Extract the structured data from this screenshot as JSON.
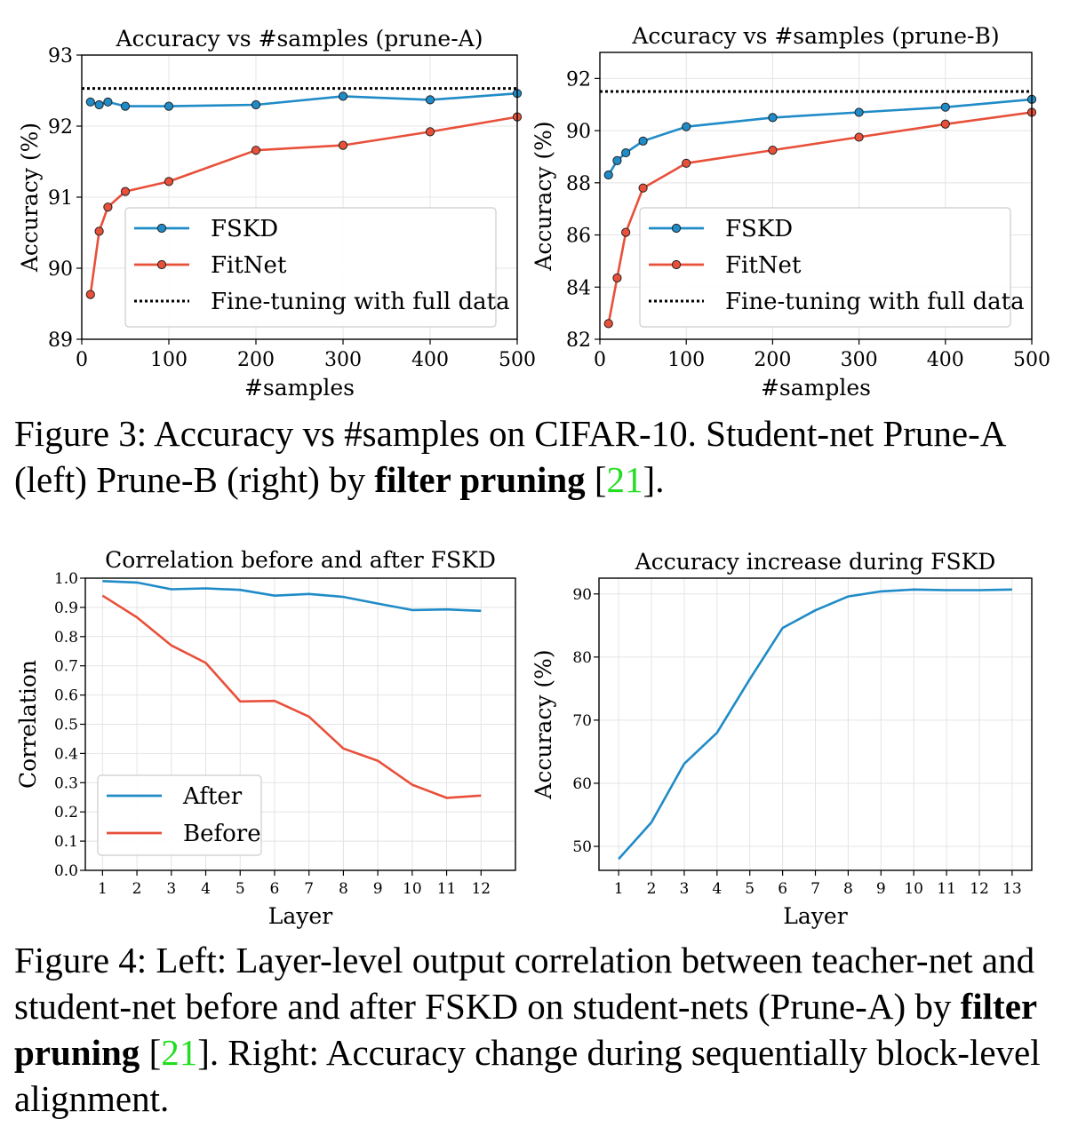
{
  "chart_data": [
    {
      "type": "line",
      "title": "Accuracy vs #samples (prune-A)",
      "xlabel": "#samples",
      "ylabel": "Accuracy (%)",
      "xlim": [
        0,
        500
      ],
      "ylim": [
        89,
        93
      ],
      "xticks": [
        "0",
        "100",
        "200",
        "300",
        "400",
        "500"
      ],
      "yticks": [
        "89",
        "90",
        "91",
        "92",
        "93"
      ],
      "legend_position": "lower-right",
      "grid": true,
      "series": [
        {
          "name": "FSKD",
          "color": "#1f8bc7",
          "marker": "circle",
          "x": [
            10,
            20,
            30,
            50,
            100,
            200,
            300,
            400,
            500
          ],
          "y": [
            92.34,
            92.3,
            92.34,
            92.28,
            92.28,
            92.3,
            92.42,
            92.37,
            92.46
          ]
        },
        {
          "name": "FitNet",
          "color": "#e8503a",
          "marker": "circle",
          "x": [
            10,
            20,
            30,
            50,
            100,
            200,
            300,
            400,
            500
          ],
          "y": [
            89.63,
            90.52,
            90.86,
            91.08,
            91.22,
            91.66,
            91.73,
            91.92,
            92.13
          ]
        },
        {
          "name": "Fine-tuning with full data",
          "color": "#000000",
          "style": "dotted",
          "x": [
            0,
            500
          ],
          "y": [
            92.53,
            92.53
          ]
        }
      ]
    },
    {
      "type": "line",
      "title": "Accuracy vs #samples (prune-B)",
      "xlabel": "#samples",
      "ylabel": "Accuracy (%)",
      "xlim": [
        0,
        500
      ],
      "ylim": [
        82,
        93
      ],
      "xticks": [
        "0",
        "100",
        "200",
        "300",
        "400",
        "500"
      ],
      "yticks": [
        "82",
        "84",
        "86",
        "88",
        "90",
        "92"
      ],
      "legend_position": "lower-right",
      "grid": true,
      "series": [
        {
          "name": "FSKD",
          "color": "#1f8bc7",
          "marker": "circle",
          "x": [
            10,
            20,
            30,
            50,
            100,
            200,
            300,
            400,
            500
          ],
          "y": [
            88.3,
            88.85,
            89.15,
            89.6,
            90.15,
            90.5,
            90.7,
            90.9,
            91.2
          ]
        },
        {
          "name": "FitNet",
          "color": "#e8503a",
          "marker": "circle",
          "x": [
            10,
            20,
            30,
            50,
            100,
            200,
            300,
            400,
            500
          ],
          "y": [
            82.6,
            84.35,
            86.1,
            87.8,
            88.75,
            89.25,
            89.75,
            90.25,
            90.7
          ]
        },
        {
          "name": "Fine-tuning with full data",
          "color": "#000000",
          "style": "dotted",
          "x": [
            0,
            500
          ],
          "y": [
            91.5,
            91.5
          ]
        }
      ]
    },
    {
      "type": "line",
      "title": "Correlation before and after FSKD",
      "xlabel": "Layer",
      "ylabel": "Correlation",
      "xlim": [
        0.5,
        13
      ],
      "ylim": [
        0.0,
        1.0
      ],
      "xticks": [
        "1",
        "2",
        "3",
        "4",
        "5",
        "6",
        "7",
        "8",
        "9",
        "10",
        "11",
        "12"
      ],
      "yticks": [
        "0.0",
        "0.1",
        "0.2",
        "0.3",
        "0.4",
        "0.5",
        "0.6",
        "0.7",
        "0.8",
        "0.9",
        "1.0"
      ],
      "legend_position": "lower-left",
      "grid": true,
      "series": [
        {
          "name": "After",
          "color": "#1f8bc7",
          "x": [
            1,
            2,
            3,
            4,
            5,
            6,
            7,
            8,
            9,
            10,
            11,
            12
          ],
          "y": [
            0.99,
            0.985,
            0.962,
            0.965,
            0.96,
            0.94,
            0.946,
            0.936,
            0.913,
            0.891,
            0.893,
            0.888
          ]
        },
        {
          "name": "Before",
          "color": "#e8503a",
          "x": [
            1,
            2,
            3,
            4,
            5,
            6,
            7,
            8,
            9,
            10,
            11,
            12
          ],
          "y": [
            0.94,
            0.866,
            0.77,
            0.71,
            0.578,
            0.58,
            0.526,
            0.417,
            0.375,
            0.293,
            0.248,
            0.256
          ]
        }
      ]
    },
    {
      "type": "line",
      "title": "Accuracy increase during FSKD",
      "xlabel": "Layer",
      "ylabel": "Accuracy (%)",
      "xlim": [
        0.4,
        13.6
      ],
      "ylim": [
        46.2,
        92.5
      ],
      "xticks": [
        "1",
        "2",
        "3",
        "4",
        "5",
        "6",
        "7",
        "8",
        "9",
        "10",
        "11",
        "12",
        "13"
      ],
      "yticks": [
        "50",
        "60",
        "70",
        "80",
        "90"
      ],
      "grid": true,
      "series": [
        {
          "name": "",
          "color": "#1f8bc7",
          "x": [
            1,
            2,
            3,
            4,
            5,
            6,
            7,
            8,
            9,
            10,
            11,
            12,
            13
          ],
          "y": [
            48.0,
            53.8,
            63.1,
            68.0,
            76.5,
            84.6,
            87.4,
            89.6,
            90.4,
            90.7,
            90.6,
            90.6,
            90.7
          ]
        }
      ]
    }
  ],
  "captions": {
    "fig3_prefix": "Figure 3: Accuracy vs #samples on CIFAR-10. Student-net Prune-A (left) Prune-B (right) by ",
    "fig3_bold": "filter pruning",
    "fig3_open": " [",
    "fig3_ref": "21",
    "fig3_close": "].",
    "fig4_prefix": "Figure 4: Left: Layer-level output correlation between teacher-net and student-net before and after FSKD on student-nets (Prune-A) by ",
    "fig4_bold": "filter pruning",
    "fig4_open": " [",
    "fig4_ref": "21",
    "fig4_suffix": "]. Right: Accuracy change during sequentially block-level alignment."
  }
}
